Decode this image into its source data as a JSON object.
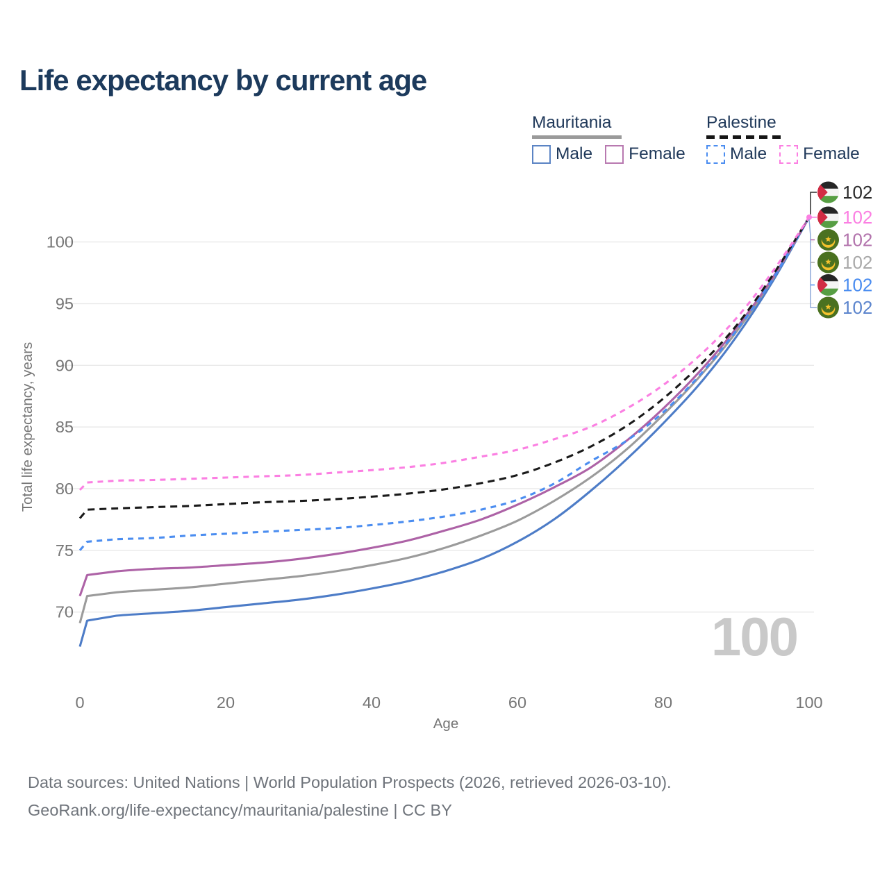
{
  "title": "Life expectancy by current age",
  "watermark": "100",
  "legend": {
    "groups": [
      {
        "label": "Mauritania",
        "style": "solid",
        "items": [
          {
            "label": "Male",
            "color": "#4d7cc7"
          },
          {
            "label": "Female",
            "color": "#ad62a6"
          }
        ]
      },
      {
        "label": "Palestine",
        "style": "dashed",
        "items": [
          {
            "label": "Male",
            "color": "#4b8df0"
          },
          {
            "label": "Female",
            "color": "#fb7fe2"
          }
        ]
      }
    ]
  },
  "end_labels": [
    {
      "flag": "palestine",
      "value": "102",
      "color": "#2b2b2b"
    },
    {
      "flag": "palestine",
      "value": "102",
      "color": "#fb7fe2"
    },
    {
      "flag": "mauritania",
      "value": "102",
      "color": "#b273ac"
    },
    {
      "flag": "mauritania",
      "value": "102",
      "color": "#a9a9a9"
    },
    {
      "flag": "palestine",
      "value": "102",
      "color": "#4b8df0"
    },
    {
      "flag": "mauritania",
      "value": "102",
      "color": "#5c85cd"
    }
  ],
  "footer": {
    "line1": "Data sources: United Nations | World Population Prospects (2026, retrieved 2026-03-10).",
    "line2": "GeoRank.org/life-expectancy/mauritania/palestine | CC BY"
  },
  "chart_data": {
    "type": "line",
    "title": "Life expectancy by current age",
    "xlabel": "Age",
    "ylabel": "Total life expectancy, years",
    "xlim": [
      0,
      100
    ],
    "ylim": [
      66,
      103
    ],
    "xticks": [
      0,
      20,
      40,
      60,
      80,
      100
    ],
    "yticks": [
      70,
      75,
      80,
      85,
      90,
      95,
      100
    ],
    "grid": "horizontal",
    "legend_position": "top-right",
    "x": [
      0,
      1,
      5,
      10,
      15,
      20,
      25,
      30,
      35,
      40,
      45,
      50,
      55,
      60,
      65,
      70,
      75,
      80,
      85,
      90,
      95,
      100
    ],
    "series": [
      {
        "name": "Mauritania Male",
        "country": "Mauritania",
        "sex": "Male",
        "style": "solid",
        "color": "#4d7cc7",
        "values": [
          67.2,
          69.3,
          69.7,
          69.9,
          70.1,
          70.4,
          70.7,
          71.0,
          71.4,
          71.9,
          72.5,
          73.3,
          74.3,
          75.7,
          77.5,
          79.8,
          82.4,
          85.3,
          88.5,
          92.3,
          96.8,
          102
        ]
      },
      {
        "name": "Mauritania Total",
        "country": "Mauritania",
        "sex": "Both",
        "style": "solid",
        "color": "#9b9b9b",
        "values": [
          69.1,
          71.3,
          71.6,
          71.8,
          72.0,
          72.3,
          72.6,
          72.9,
          73.3,
          73.8,
          74.4,
          75.2,
          76.2,
          77.4,
          79.0,
          80.9,
          83.2,
          86.0,
          89.1,
          92.7,
          97.0,
          102
        ]
      },
      {
        "name": "Mauritania Female",
        "country": "Mauritania",
        "sex": "Female",
        "style": "solid",
        "color": "#ad62a6",
        "values": [
          71.3,
          73.0,
          73.3,
          73.5,
          73.6,
          73.8,
          74.0,
          74.3,
          74.7,
          75.2,
          75.8,
          76.6,
          77.5,
          78.7,
          80.1,
          81.7,
          83.9,
          86.5,
          89.5,
          93.0,
          97.1,
          102
        ]
      },
      {
        "name": "Palestine Male",
        "country": "Palestine",
        "sex": "Male",
        "style": "dashed",
        "color": "#4b8df0",
        "values": [
          75.0,
          75.7,
          75.9,
          76.0,
          76.2,
          76.35,
          76.5,
          76.65,
          76.8,
          77.05,
          77.35,
          77.75,
          78.3,
          79.1,
          80.4,
          82.2,
          83.9,
          86.2,
          89.2,
          92.8,
          97.0,
          102
        ]
      },
      {
        "name": "Palestine Total",
        "country": "Palestine",
        "sex": "Both",
        "style": "dashed",
        "color": "#1a1a1a",
        "values": [
          77.6,
          78.3,
          78.4,
          78.5,
          78.6,
          78.75,
          78.9,
          79.0,
          79.15,
          79.35,
          79.6,
          79.95,
          80.45,
          81.1,
          82.1,
          83.4,
          85.1,
          87.3,
          90.0,
          93.2,
          97.3,
          102
        ]
      },
      {
        "name": "Palestine Female",
        "country": "Palestine",
        "sex": "Female",
        "style": "dashed",
        "color": "#fb7fe2",
        "values": [
          79.9,
          80.5,
          80.65,
          80.7,
          80.8,
          80.9,
          81.0,
          81.1,
          81.3,
          81.5,
          81.75,
          82.1,
          82.6,
          83.15,
          84.0,
          85.0,
          86.5,
          88.4,
          90.8,
          93.8,
          97.6,
          102
        ]
      }
    ]
  }
}
